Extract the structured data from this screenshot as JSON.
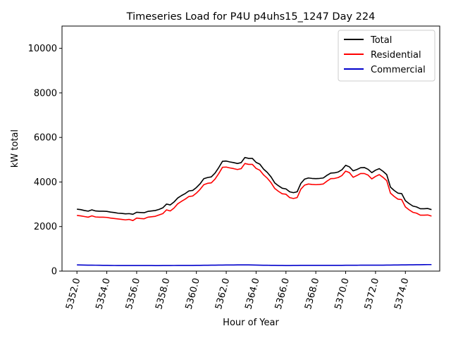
{
  "chart_data": {
    "type": "line",
    "title": "Timeseries Load for P4U p4uhs15_1247  Day 224",
    "xlabel": "Hour of Year",
    "ylabel": "kW total",
    "xlim": [
      5351.0,
      5376.3
    ],
    "ylim": [
      0,
      11000
    ],
    "xticks": [
      5352.0,
      5354.0,
      5356.0,
      5358.0,
      5360.0,
      5362.0,
      5364.0,
      5366.0,
      5368.0,
      5370.0,
      5372.0,
      5374.0
    ],
    "xtick_labels": [
      "5352.0",
      "5354.0",
      "5356.0",
      "5358.0",
      "5360.0",
      "5362.0",
      "5364.0",
      "5366.0",
      "5368.0",
      "5370.0",
      "5372.0",
      "5374.0"
    ],
    "yticks": [
      0,
      2000,
      4000,
      6000,
      8000,
      10000
    ],
    "ytick_labels": [
      "0",
      "2000",
      "4000",
      "6000",
      "8000",
      "10000"
    ],
    "legend_position": "top-right",
    "x": [
      5352.0,
      5352.25,
      5352.5,
      5352.75,
      5353.0,
      5353.25,
      5353.5,
      5353.75,
      5354.0,
      5354.25,
      5354.5,
      5354.75,
      5355.0,
      5355.25,
      5355.5,
      5355.75,
      5356.0,
      5356.25,
      5356.5,
      5356.75,
      5357.0,
      5357.25,
      5357.5,
      5357.75,
      5358.0,
      5358.25,
      5358.5,
      5358.75,
      5359.0,
      5359.25,
      5359.5,
      5359.75,
      5360.0,
      5360.25,
      5360.5,
      5360.75,
      5361.0,
      5361.25,
      5361.5,
      5361.75,
      5362.0,
      5362.25,
      5362.5,
      5362.75,
      5363.0,
      5363.25,
      5363.5,
      5363.75,
      5364.0,
      5364.25,
      5364.5,
      5364.75,
      5365.0,
      5365.25,
      5365.5,
      5365.75,
      5366.0,
      5366.25,
      5366.5,
      5366.75,
      5367.0,
      5367.25,
      5367.5,
      5367.75,
      5368.0,
      5368.25,
      5368.5,
      5368.75,
      5369.0,
      5369.25,
      5369.5,
      5369.75,
      5370.0,
      5370.25,
      5370.5,
      5370.75,
      5371.0,
      5371.25,
      5371.5,
      5371.75,
      5372.0,
      5372.25,
      5372.5,
      5372.75,
      5373.0,
      5373.25,
      5373.5,
      5373.75,
      5374.0,
      5374.25,
      5374.5,
      5374.75,
      5375.0,
      5375.25,
      5375.5,
      5375.75
    ],
    "series": [
      {
        "name": "Total",
        "color": "#000000",
        "values": [
          2780,
          2760,
          2720,
          2690,
          2750,
          2700,
          2690,
          2690,
          2680,
          2650,
          2630,
          2600,
          2590,
          2570,
          2580,
          2550,
          2640,
          2630,
          2620,
          2680,
          2700,
          2720,
          2770,
          2840,
          3010,
          2970,
          3100,
          3280,
          3390,
          3480,
          3600,
          3620,
          3750,
          3920,
          4150,
          4200,
          4230,
          4400,
          4650,
          4930,
          4940,
          4900,
          4870,
          4830,
          4870,
          5100,
          5060,
          5060,
          4880,
          4800,
          4580,
          4430,
          4230,
          3960,
          3830,
          3720,
          3690,
          3560,
          3520,
          3560,
          3940,
          4130,
          4180,
          4160,
          4150,
          4160,
          4180,
          4300,
          4400,
          4410,
          4450,
          4550,
          4750,
          4680,
          4500,
          4560,
          4640,
          4650,
          4570,
          4420,
          4530,
          4600,
          4480,
          4330,
          3770,
          3620,
          3500,
          3480,
          3160,
          3030,
          2920,
          2880,
          2800,
          2800,
          2810,
          2760
        ]
      },
      {
        "name": "Residential",
        "color": "#ff0000",
        "values": [
          2500,
          2480,
          2450,
          2420,
          2480,
          2430,
          2420,
          2420,
          2410,
          2380,
          2360,
          2340,
          2320,
          2300,
          2320,
          2270,
          2380,
          2360,
          2350,
          2420,
          2440,
          2460,
          2520,
          2580,
          2750,
          2700,
          2830,
          3020,
          3130,
          3230,
          3350,
          3370,
          3500,
          3670,
          3880,
          3940,
          3960,
          4130,
          4380,
          4660,
          4670,
          4630,
          4600,
          4560,
          4600,
          4830,
          4790,
          4790,
          4610,
          4530,
          4320,
          4170,
          3970,
          3710,
          3580,
          3470,
          3450,
          3300,
          3260,
          3300,
          3680,
          3860,
          3910,
          3890,
          3880,
          3890,
          3910,
          4040,
          4150,
          4160,
          4200,
          4290,
          4490,
          4420,
          4210,
          4290,
          4380,
          4380,
          4310,
          4140,
          4250,
          4330,
          4210,
          4060,
          3500,
          3350,
          3230,
          3210,
          2880,
          2750,
          2640,
          2600,
          2510,
          2510,
          2520,
          2470
        ]
      },
      {
        "name": "Commercial",
        "color": "#0000cc",
        "values": [
          280,
          275,
          272,
          268,
          268,
          265,
          262,
          260,
          258,
          255,
          253,
          250,
          250,
          250,
          252,
          250,
          252,
          252,
          250,
          250,
          250,
          248,
          248,
          250,
          252,
          252,
          253,
          255,
          255,
          256,
          256,
          256,
          258,
          260,
          262,
          264,
          266,
          268,
          270,
          272,
          274,
          276,
          276,
          278,
          278,
          280,
          278,
          276,
          272,
          268,
          264,
          262,
          260,
          258,
          256,
          254,
          252,
          252,
          254,
          256,
          258,
          258,
          258,
          258,
          258,
          258,
          258,
          258,
          258,
          258,
          260,
          260,
          262,
          262,
          264,
          264,
          266,
          266,
          266,
          266,
          266,
          266,
          268,
          270,
          272,
          274,
          276,
          278,
          280,
          282,
          284,
          286,
          288,
          290,
          292,
          292
        ]
      }
    ]
  }
}
